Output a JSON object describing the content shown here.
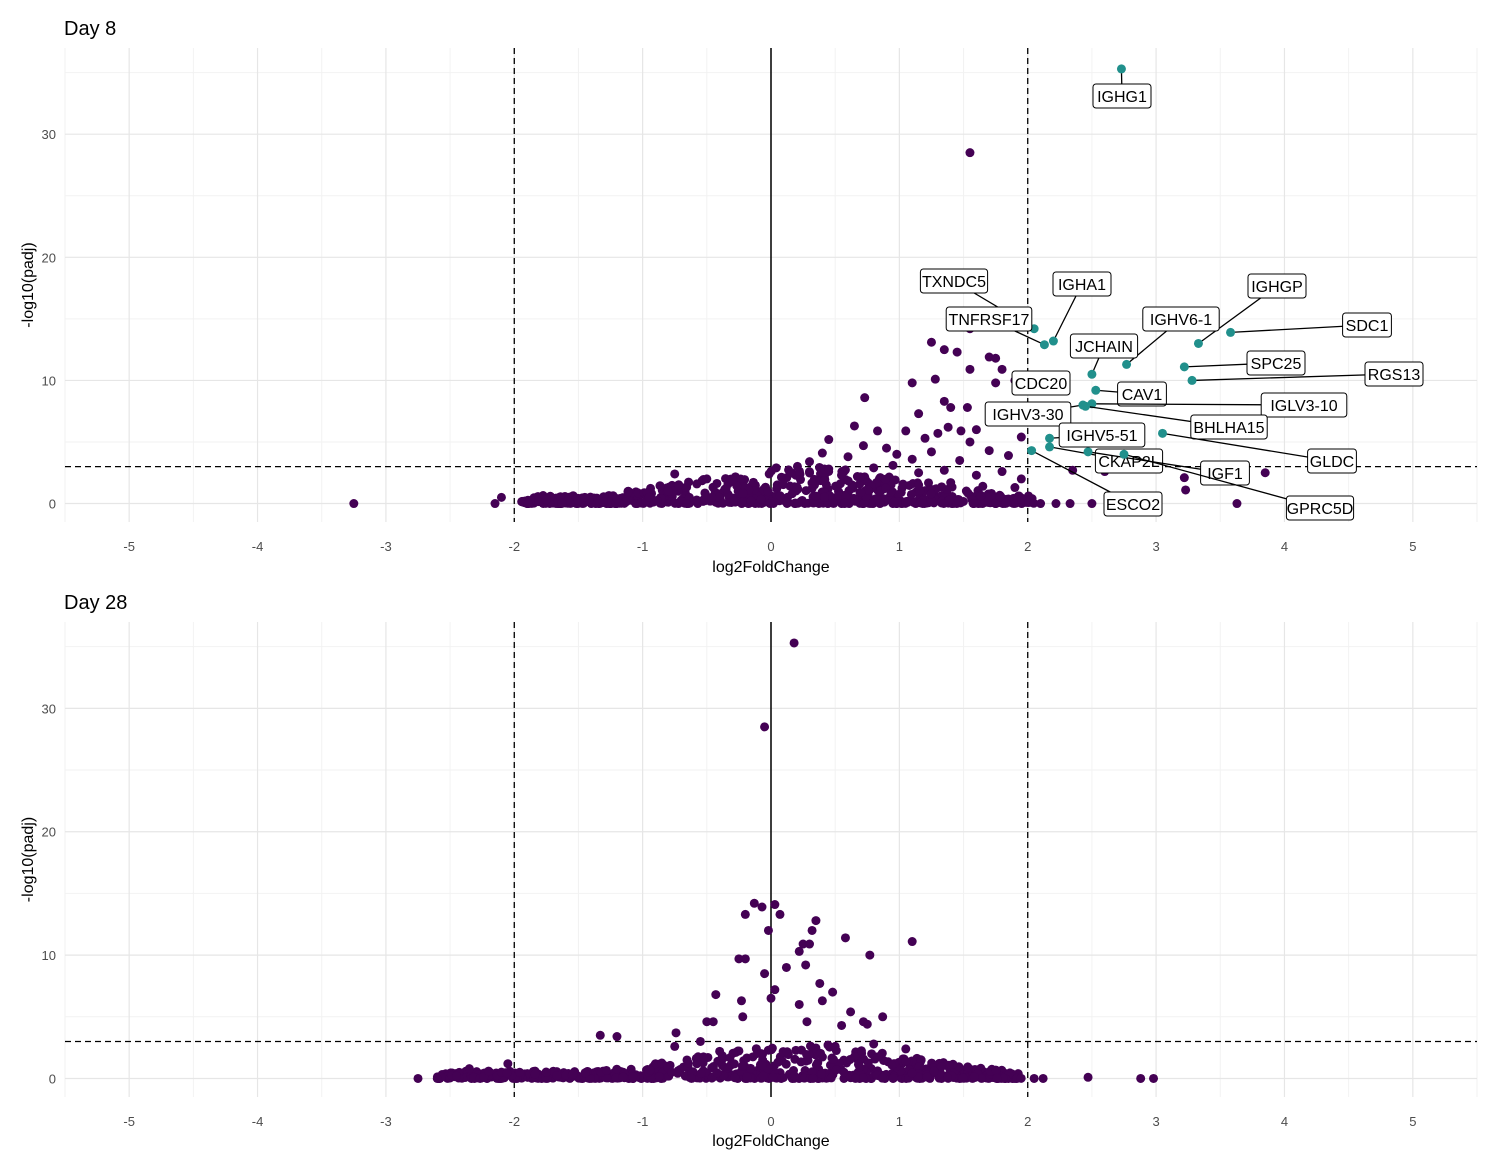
{
  "colors": {
    "non_significant": "#440154",
    "significant": "#21908C",
    "grid_major": "#e6e6e6",
    "grid_minor": "#f2f2f2"
  },
  "chart_data": [
    {
      "type": "scatter",
      "title": "Day 8",
      "xlabel": "log2FoldChange",
      "ylabel": "-log10(padj)",
      "xlim": [
        -5.5,
        5.5
      ],
      "ylim": [
        -1.5,
        37
      ],
      "x_ticks": [
        "-5",
        "-4",
        "-3",
        "-2",
        "-1",
        "0",
        "1",
        "2",
        "3",
        "4",
        "5"
      ],
      "y_ticks": [
        "0",
        "10",
        "20",
        "30"
      ],
      "vlines": [
        -2,
        2
      ],
      "hline": 3,
      "grid": true,
      "labeled_points": [
        {
          "gene": "IGHG1",
          "x": 2.73,
          "y": 35.3
        },
        {
          "gene": "TXNDC5",
          "x": 2.05,
          "y": 14.2
        },
        {
          "gene": "IGHA1",
          "x": 2.2,
          "y": 13.2
        },
        {
          "gene": "TNFRSF17",
          "x": 2.13,
          "y": 12.9
        },
        {
          "gene": "IGHGP",
          "x": 3.33,
          "y": 13.0
        },
        {
          "gene": "SDC1",
          "x": 3.58,
          "y": 13.9
        },
        {
          "gene": "IGHV6-1",
          "x": 2.77,
          "y": 11.3
        },
        {
          "gene": "JCHAIN",
          "x": 2.5,
          "y": 10.5
        },
        {
          "gene": "SPC25",
          "x": 3.22,
          "y": 11.1
        },
        {
          "gene": "RGS13",
          "x": 3.28,
          "y": 10.0
        },
        {
          "gene": "CDC20",
          "x": 2.13,
          "y": 9.3
        },
        {
          "gene": "CAV1",
          "x": 2.53,
          "y": 9.2
        },
        {
          "gene": "IGHV3-30",
          "x": 2.43,
          "y": 8.0
        },
        {
          "gene": "IGLV3-10",
          "x": 2.5,
          "y": 8.1
        },
        {
          "gene": "BHLHA15",
          "x": 2.45,
          "y": 7.9
        },
        {
          "gene": "IGHV5-51",
          "x": 2.17,
          "y": 5.3
        },
        {
          "gene": "GLDC",
          "x": 3.05,
          "y": 5.7
        },
        {
          "gene": "CKAP2L",
          "x": 2.17,
          "y": 4.6
        },
        {
          "gene": "IGF1",
          "x": 2.47,
          "y": 4.2
        },
        {
          "gene": "ESCO2",
          "x": 2.03,
          "y": 4.3
        },
        {
          "gene": "GPRC5D",
          "x": 2.75,
          "y": 4.0
        }
      ],
      "points": [
        {
          "x": -3.25,
          "y": 0.0
        },
        {
          "x": -2.15,
          "y": 0.0
        },
        {
          "x": -2.1,
          "y": 0.5
        },
        {
          "x": 1.55,
          "y": 28.5
        },
        {
          "x": 1.55,
          "y": 14.2
        },
        {
          "x": 1.25,
          "y": 13.1
        },
        {
          "x": 1.35,
          "y": 12.5
        },
        {
          "x": 1.45,
          "y": 12.3
        },
        {
          "x": 1.7,
          "y": 11.9
        },
        {
          "x": 1.75,
          "y": 11.8
        },
        {
          "x": 1.8,
          "y": 10.9
        },
        {
          "x": 1.55,
          "y": 10.9
        },
        {
          "x": 1.28,
          "y": 10.1
        },
        {
          "x": 1.1,
          "y": 9.8
        },
        {
          "x": 1.75,
          "y": 9.8
        },
        {
          "x": 1.9,
          "y": 10.0
        },
        {
          "x": 0.73,
          "y": 8.6
        },
        {
          "x": 1.35,
          "y": 8.3
        },
        {
          "x": 1.4,
          "y": 7.8
        },
        {
          "x": 1.15,
          "y": 7.3
        },
        {
          "x": 1.53,
          "y": 7.8
        },
        {
          "x": 1.75,
          "y": 7.8
        },
        {
          "x": 1.85,
          "y": 6.7
        },
        {
          "x": 0.65,
          "y": 6.3
        },
        {
          "x": 0.83,
          "y": 5.9
        },
        {
          "x": 1.05,
          "y": 5.9
        },
        {
          "x": 1.3,
          "y": 5.7
        },
        {
          "x": 1.38,
          "y": 6.2
        },
        {
          "x": 1.48,
          "y": 5.9
        },
        {
          "x": 1.6,
          "y": 6.0
        },
        {
          "x": 0.45,
          "y": 5.2
        },
        {
          "x": 1.95,
          "y": 5.4
        },
        {
          "x": 1.2,
          "y": 5.3
        },
        {
          "x": 0.72,
          "y": 4.7
        },
        {
          "x": 0.9,
          "y": 4.5
        },
        {
          "x": 1.55,
          "y": 5.0
        },
        {
          "x": 1.7,
          "y": 4.3
        },
        {
          "x": 0.4,
          "y": 4.1
        },
        {
          "x": 0.6,
          "y": 3.8
        },
        {
          "x": 0.98,
          "y": 4.0
        },
        {
          "x": 1.1,
          "y": 3.6
        },
        {
          "x": 1.25,
          "y": 4.2
        },
        {
          "x": 1.47,
          "y": 3.5
        },
        {
          "x": 1.85,
          "y": 3.9
        },
        {
          "x": 0.3,
          "y": 3.4
        },
        {
          "x": -0.75,
          "y": 2.4
        },
        {
          "x": -0.5,
          "y": 2.0
        },
        {
          "x": -0.8,
          "y": 1.0
        },
        {
          "x": -0.35,
          "y": 1.2
        },
        {
          "x": 0.2,
          "y": 1.3
        },
        {
          "x": 0.45,
          "y": 2.8
        },
        {
          "x": 0.55,
          "y": 2.3
        },
        {
          "x": 0.8,
          "y": 2.9
        },
        {
          "x": 0.95,
          "y": 3.1
        },
        {
          "x": 1.15,
          "y": 2.5
        },
        {
          "x": 1.35,
          "y": 2.7
        },
        {
          "x": 1.6,
          "y": 2.3
        },
        {
          "x": 1.8,
          "y": 2.6
        },
        {
          "x": 1.95,
          "y": 2.0
        },
        {
          "x": 1.15,
          "y": 1.5
        },
        {
          "x": 1.4,
          "y": 1.7
        },
        {
          "x": 1.65,
          "y": 1.4
        },
        {
          "x": 1.9,
          "y": 1.3
        },
        {
          "x": 2.35,
          "y": 2.7
        },
        {
          "x": 2.6,
          "y": 2.6
        },
        {
          "x": 3.22,
          "y": 2.1
        },
        {
          "x": 3.23,
          "y": 1.1
        },
        {
          "x": 3.85,
          "y": 2.5
        },
        {
          "x": 3.63,
          "y": 0.0
        },
        {
          "x": 2.33,
          "y": 0.0
        },
        {
          "x": 2.5,
          "y": 0.0
        },
        {
          "x": 2.63,
          "y": 0.0
        },
        {
          "x": 2.1,
          "y": 0.0
        },
        {
          "x": 2.22,
          "y": 0.0
        },
        {
          "x": -1.75,
          "y": 0.3
        },
        {
          "x": -1.45,
          "y": 0.5
        },
        {
          "x": -1.2,
          "y": 0.4
        },
        {
          "x": -0.95,
          "y": 0.5
        },
        {
          "x": 0.7,
          "y": 0.9
        },
        {
          "x": 0.35,
          "y": 0.6
        }
      ],
      "dense_band": {
        "x_range": [
          -1.95,
          2.05
        ],
        "max_y_center": 2.2,
        "n": 700
      }
    },
    {
      "type": "scatter",
      "title": "Day 28",
      "xlabel": "log2FoldChange",
      "ylabel": "-log10(padj)",
      "xlim": [
        -5.5,
        5.5
      ],
      "ylim": [
        -1.5,
        37
      ],
      "x_ticks": [
        "-5",
        "-4",
        "-3",
        "-2",
        "-1",
        "0",
        "1",
        "2",
        "3",
        "4",
        "5"
      ],
      "y_ticks": [
        "0",
        "10",
        "20",
        "30"
      ],
      "vlines": [
        -2,
        2
      ],
      "hline": 3,
      "grid": true,
      "labeled_points": [],
      "points": [
        {
          "x": 0.18,
          "y": 35.3
        },
        {
          "x": -0.05,
          "y": 28.5
        },
        {
          "x": -0.13,
          "y": 14.2
        },
        {
          "x": -0.07,
          "y": 13.9
        },
        {
          "x": 0.03,
          "y": 14.1
        },
        {
          "x": -0.2,
          "y": 13.3
        },
        {
          "x": 0.07,
          "y": 13.3
        },
        {
          "x": 0.35,
          "y": 12.8
        },
        {
          "x": -0.02,
          "y": 12.0
        },
        {
          "x": 0.32,
          "y": 12.0
        },
        {
          "x": 0.58,
          "y": 11.4
        },
        {
          "x": 1.1,
          "y": 11.1
        },
        {
          "x": 0.25,
          "y": 10.9
        },
        {
          "x": 0.3,
          "y": 10.9
        },
        {
          "x": 0.22,
          "y": 10.3
        },
        {
          "x": 0.77,
          "y": 10.0
        },
        {
          "x": -0.25,
          "y": 9.7
        },
        {
          "x": -0.2,
          "y": 9.7
        },
        {
          "x": 0.27,
          "y": 9.2
        },
        {
          "x": 0.12,
          "y": 9.0
        },
        {
          "x": -0.05,
          "y": 8.5
        },
        {
          "x": 0.38,
          "y": 7.7
        },
        {
          "x": 0.03,
          "y": 7.2
        },
        {
          "x": 0.48,
          "y": 7.0
        },
        {
          "x": -0.43,
          "y": 6.8
        },
        {
          "x": -0.23,
          "y": 6.3
        },
        {
          "x": 0.4,
          "y": 6.3
        },
        {
          "x": 0.0,
          "y": 6.5
        },
        {
          "x": 0.22,
          "y": 6.0
        },
        {
          "x": 0.62,
          "y": 5.4
        },
        {
          "x": 0.87,
          "y": 5.0
        },
        {
          "x": -0.22,
          "y": 5.0
        },
        {
          "x": -0.5,
          "y": 4.6
        },
        {
          "x": -0.45,
          "y": 4.6
        },
        {
          "x": 0.28,
          "y": 4.6
        },
        {
          "x": 0.55,
          "y": 4.3
        },
        {
          "x": 0.72,
          "y": 4.6
        },
        {
          "x": 0.75,
          "y": 4.4
        },
        {
          "x": -0.74,
          "y": 3.7
        },
        {
          "x": -1.33,
          "y": 3.5
        },
        {
          "x": -1.2,
          "y": 3.4
        },
        {
          "x": -0.55,
          "y": 3.0
        },
        {
          "x": -0.75,
          "y": 2.6
        },
        {
          "x": -0.4,
          "y": 2.2
        },
        {
          "x": 0.8,
          "y": 2.8
        },
        {
          "x": 1.05,
          "y": 2.4
        },
        {
          "x": 0.5,
          "y": 2.6
        },
        {
          "x": 1.05,
          "y": 1.4
        },
        {
          "x": -2.35,
          "y": 0.8
        },
        {
          "x": -2.2,
          "y": 0.6
        },
        {
          "x": -1.75,
          "y": 0.5
        },
        {
          "x": 2.47,
          "y": 0.1
        },
        {
          "x": 2.88,
          "y": 0.0
        },
        {
          "x": 2.98,
          "y": 0.0
        },
        {
          "x": 2.05,
          "y": 0.0
        },
        {
          "x": 2.12,
          "y": 0.0
        },
        {
          "x": -2.75,
          "y": 0.0
        },
        {
          "x": -2.6,
          "y": 0.0
        },
        {
          "x": -2.45,
          "y": 0.2
        },
        {
          "x": -2.05,
          "y": 1.2
        }
      ],
      "dense_band": {
        "x_range": [
          -2.6,
          1.95
        ],
        "max_y_center": 2.0,
        "n": 700
      }
    }
  ]
}
